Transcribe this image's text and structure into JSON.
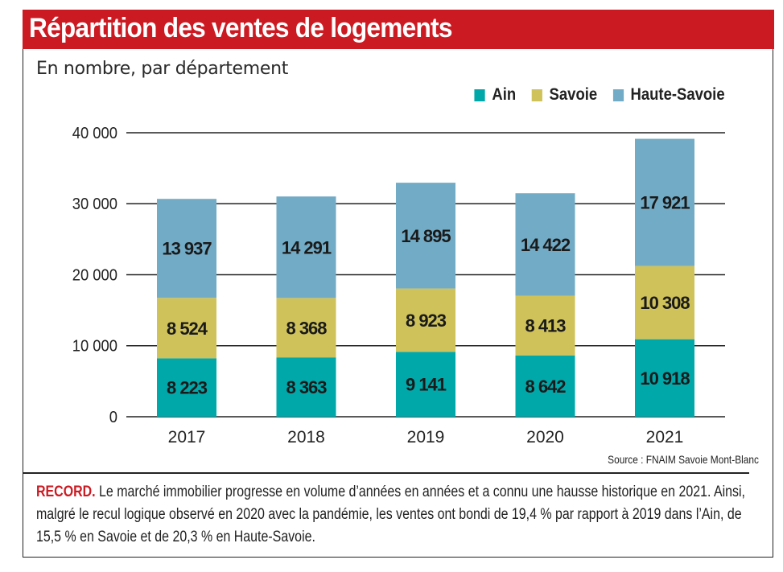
{
  "header": {
    "title": "Répartition des ventes de logements",
    "subtitle": "En nombre, par département"
  },
  "colors": {
    "title_bar": "#cc1a22",
    "ain": "#00a8aa",
    "savoie": "#cfc25a",
    "haute_savoie": "#72abc6",
    "lead": "#cc1a22"
  },
  "legend": [
    {
      "label": "Ain",
      "color": "#00a8aa"
    },
    {
      "label": "Savoie",
      "color": "#cfc25a"
    },
    {
      "label": "Haute-Savoie",
      "color": "#72abc6"
    }
  ],
  "chart_data": {
    "type": "bar",
    "stacked": true,
    "title": "Répartition des ventes de logements",
    "subtitle": "En nombre, par département",
    "xlabel": "",
    "ylabel": "",
    "categories": [
      "2017",
      "2018",
      "2019",
      "2020",
      "2021"
    ],
    "series": [
      {
        "name": "Ain",
        "color": "#00a8aa",
        "values": [
          8223,
          8363,
          9141,
          8642,
          10918
        ],
        "labels": [
          "8 223",
          "8 363",
          "9 141",
          "8 642",
          "10 918"
        ]
      },
      {
        "name": "Savoie",
        "color": "#cfc25a",
        "values": [
          8524,
          8368,
          8923,
          8413,
          10308
        ],
        "labels": [
          "8 524",
          "8 368",
          "8 923",
          "8 413",
          "10 308"
        ]
      },
      {
        "name": "Haute-Savoie",
        "color": "#72abc6",
        "values": [
          13937,
          14291,
          14895,
          14422,
          17921
        ],
        "labels": [
          "13 937",
          "14 291",
          "14 895",
          "14 422",
          "17 921"
        ]
      }
    ],
    "ylim": [
      0,
      40000
    ],
    "yticks": [
      0,
      10000,
      20000,
      30000,
      40000
    ],
    "ytick_labels": [
      "0",
      "10 000",
      "20 000",
      "30 000",
      "40 000"
    ],
    "grid": true,
    "legend_position": "top-right"
  },
  "footer": {
    "source": "Source : FNAIM Savoie Mont-Blanc",
    "caption_lead": "RECORD.",
    "caption_text": " Le marché immobilier progresse en volume d’années en années et a connu une hausse historique en 2021. Ainsi, malgré le recul logique observé en 2020 avec la pandémie, les ventes ont bondi de 19,4 % par rapport à 2019 dans l’Ain, de 15,5 % en Savoie et de 20,3 % en Haute-Savoie."
  }
}
